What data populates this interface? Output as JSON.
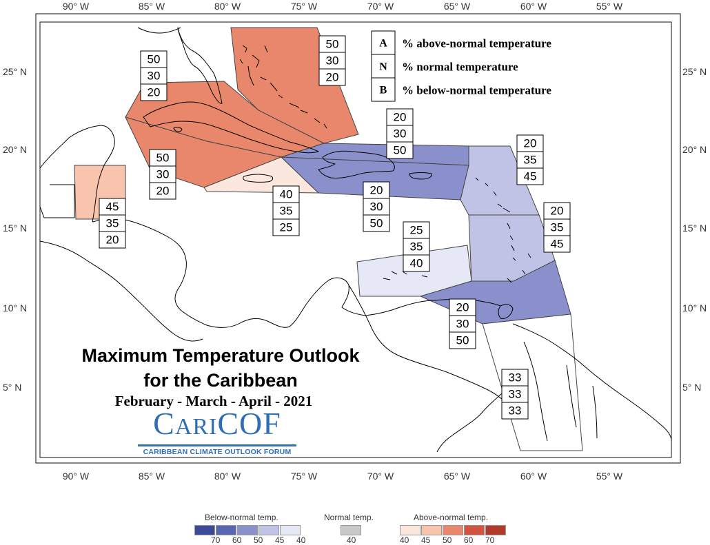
{
  "axes": {
    "lon_labels": [
      "90° W",
      "85° W",
      "80° W",
      "75° W",
      "70° W",
      "65° W",
      "60° W",
      "55° W"
    ],
    "lat_labels": [
      "25° N",
      "20° N",
      "15° N",
      "10° N",
      "5° N"
    ]
  },
  "key": {
    "rows": [
      {
        "letter": "A",
        "text": "% above-normal temperature"
      },
      {
        "letter": "N",
        "text": "% normal temperature"
      },
      {
        "letter": "B",
        "text": "% below-normal temperature"
      }
    ]
  },
  "regions": [
    {
      "name": "bahamas",
      "values": [
        "50",
        "30",
        "20"
      ],
      "fill": "#e8876c"
    },
    {
      "name": "cuba",
      "values": [
        "50",
        "30",
        "20"
      ],
      "fill": "#e8876c"
    },
    {
      "name": "western-cuba-caymans",
      "values": [
        "50",
        "30",
        "20"
      ],
      "fill": "#e8876c"
    },
    {
      "name": "jamaica",
      "values": [
        "40",
        "35",
        "25"
      ],
      "fill": "#fbe7de"
    },
    {
      "name": "belize",
      "values": [
        "45",
        "35",
        "20"
      ],
      "fill": "#f9c4ae"
    },
    {
      "name": "hispaniola-north",
      "values": [
        "20",
        "30",
        "50"
      ],
      "fill": "#8a90cc"
    },
    {
      "name": "hispaniola-south-puerto-rico",
      "values": [
        "20",
        "30",
        "50"
      ],
      "fill": "#8a90cc"
    },
    {
      "name": "leeward-islands",
      "values": [
        "20",
        "35",
        "45"
      ],
      "fill": "#c0c3e5"
    },
    {
      "name": "windward-islands",
      "values": [
        "20",
        "35",
        "45"
      ],
      "fill": "#c0c3e5"
    },
    {
      "name": "abc-islands",
      "values": [
        "25",
        "35",
        "40"
      ],
      "fill": "#e6e8f6"
    },
    {
      "name": "trinidad-tobago",
      "values": [
        "20",
        "30",
        "50"
      ],
      "fill": "#8a90cc"
    },
    {
      "name": "guianas",
      "values": [
        "33",
        "33",
        "33"
      ],
      "fill": "#ffffff"
    }
  ],
  "title": {
    "line1": "Maximum Temperature Outlook",
    "line2": "for the Caribbean",
    "period": "February - March - April - 2021"
  },
  "logo": {
    "main_c": "C",
    "main_ari": "ARI",
    "main_cof": "COF",
    "sub": "CARIBBEAN CLIMATE OUTLOOK FORUM"
  },
  "legend": {
    "below_title": "Below-normal temp.",
    "normal_title": "Normal temp.",
    "above_title": "Above-normal temp.",
    "below_colors": [
      "#3a4a96",
      "#5b66b0",
      "#8a90cc",
      "#c0c3e5",
      "#e6e8f6"
    ],
    "below_ticks": [
      "70",
      "60",
      "50",
      "45",
      "40"
    ],
    "normal_color": "#c8c8c8",
    "normal_ticks": [
      "40"
    ],
    "above_colors": [
      "#fbe7de",
      "#f9c4ae",
      "#e8876c",
      "#d1553e",
      "#b23a2a"
    ],
    "above_ticks": [
      "40",
      "45",
      "50",
      "60",
      "70"
    ]
  }
}
